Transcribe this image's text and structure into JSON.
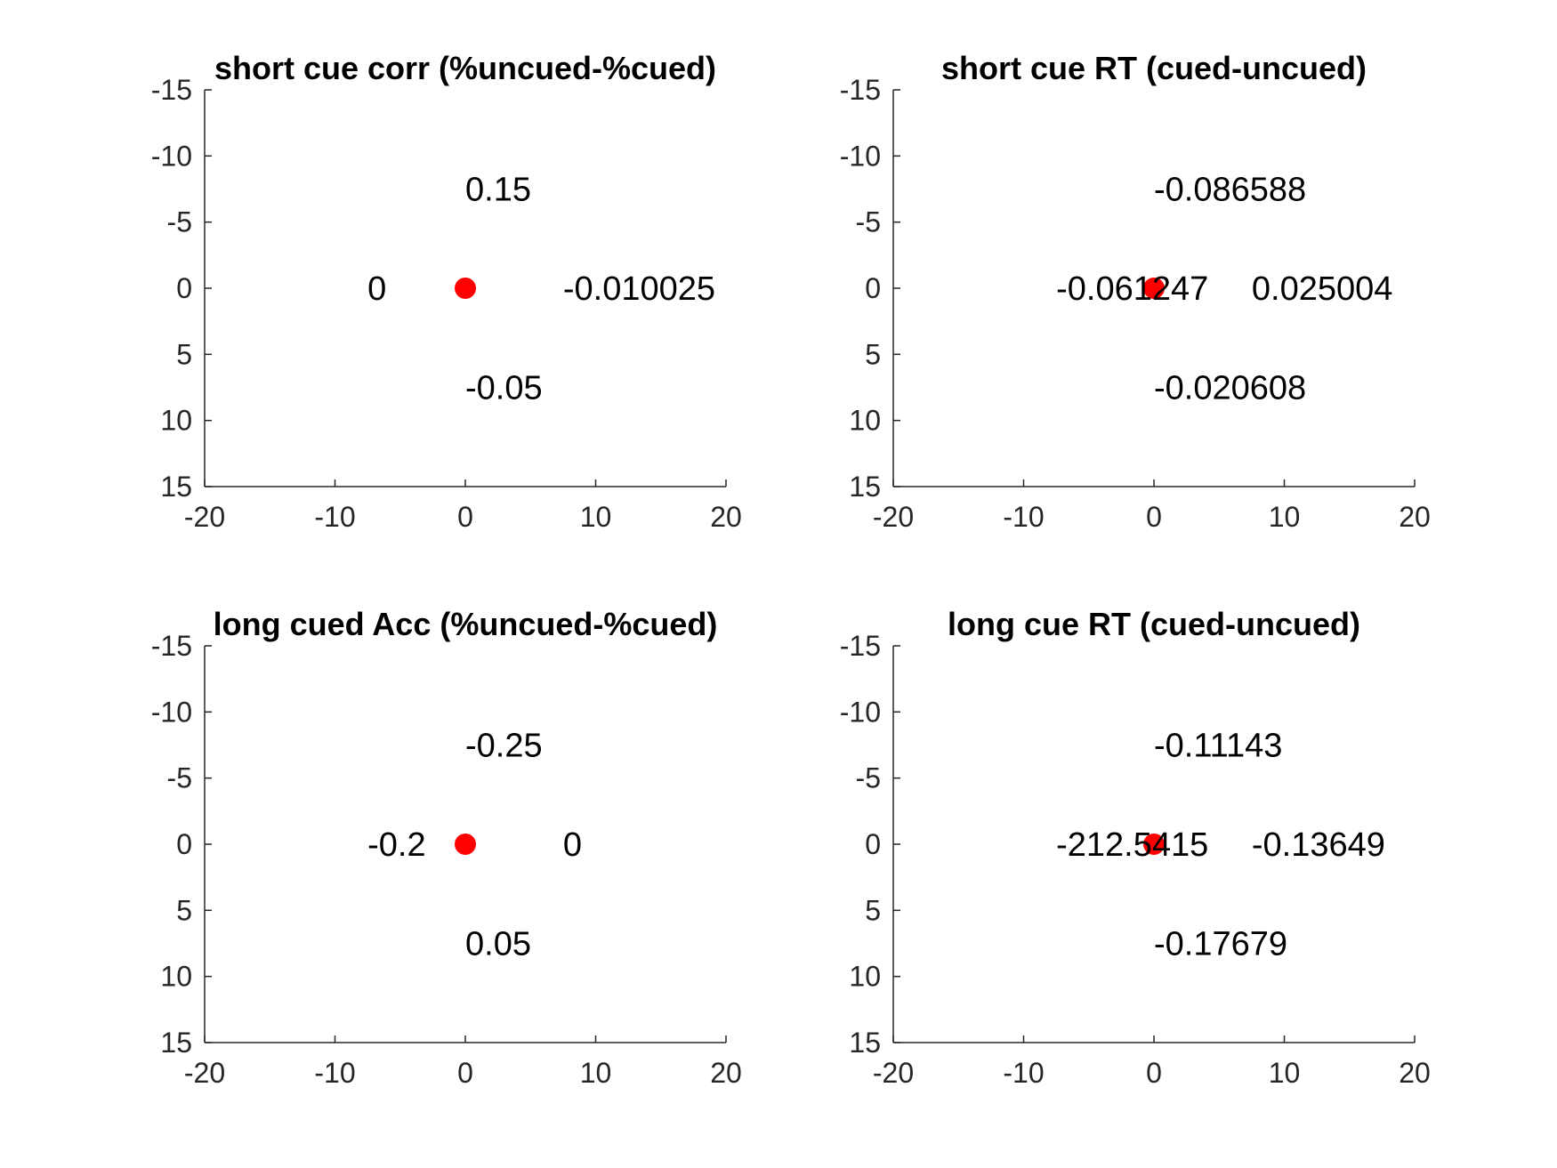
{
  "chart_data": [
    {
      "type": "scatter",
      "title": "short cue corr (%uncued-%cued)",
      "xlim": [
        -20,
        20
      ],
      "ylim": [
        -15,
        15
      ],
      "y_reversed": true,
      "x_ticks": [
        -20,
        -10,
        0,
        10,
        20
      ],
      "y_ticks": [
        -15,
        -10,
        -5,
        0,
        5,
        10,
        15
      ],
      "marker_color": "#ff0000",
      "points": [
        {
          "x": 0,
          "y": 0
        }
      ],
      "annotations": [
        {
          "text": "0.15",
          "x": 0,
          "y": -7.5
        },
        {
          "text": "0",
          "x": -7.5,
          "y": 0
        },
        {
          "text": "-0.010025",
          "x": 7.5,
          "y": 0
        },
        {
          "text": "-0.05",
          "x": 0,
          "y": 7.5
        }
      ]
    },
    {
      "type": "scatter",
      "title": "short cue RT (cued-uncued)",
      "xlim": [
        -20,
        20
      ],
      "ylim": [
        -15,
        15
      ],
      "y_reversed": true,
      "x_ticks": [
        -20,
        -10,
        0,
        10,
        20
      ],
      "y_ticks": [
        -15,
        -10,
        -5,
        0,
        5,
        10,
        15
      ],
      "marker_color": "#ff0000",
      "points": [
        {
          "x": 0,
          "y": 0
        }
      ],
      "annotations": [
        {
          "text": "-0.086588",
          "x": 0,
          "y": -7.5
        },
        {
          "text": "-0.061247",
          "x": -7.5,
          "y": 0
        },
        {
          "text": "0.025004",
          "x": 7.5,
          "y": 0
        },
        {
          "text": "-0.020608",
          "x": 0,
          "y": 7.5
        }
      ]
    },
    {
      "type": "scatter",
      "title": "long cued Acc (%uncued-%cued)",
      "xlim": [
        -20,
        20
      ],
      "ylim": [
        -15,
        15
      ],
      "y_reversed": true,
      "x_ticks": [
        -20,
        -10,
        0,
        10,
        20
      ],
      "y_ticks": [
        -15,
        -10,
        -5,
        0,
        5,
        10,
        15
      ],
      "marker_color": "#ff0000",
      "points": [
        {
          "x": 0,
          "y": 0
        }
      ],
      "annotations": [
        {
          "text": "-0.25",
          "x": 0,
          "y": -7.5
        },
        {
          "text": "-0.2",
          "x": -7.5,
          "y": 0
        },
        {
          "text": "0",
          "x": 7.5,
          "y": 0
        },
        {
          "text": "0.05",
          "x": 0,
          "y": 7.5
        }
      ]
    },
    {
      "type": "scatter",
      "title": "long cue RT (cued-uncued)",
      "xlim": [
        -20,
        20
      ],
      "ylim": [
        -15,
        15
      ],
      "y_reversed": true,
      "x_ticks": [
        -20,
        -10,
        0,
        10,
        20
      ],
      "y_ticks": [
        -15,
        -10,
        -5,
        0,
        5,
        10,
        15
      ],
      "marker_color": "#ff0000",
      "points": [
        {
          "x": 0,
          "y": 0
        }
      ],
      "annotations": [
        {
          "text": "-0.11143",
          "x": 0,
          "y": -7.5
        },
        {
          "text": "-212.5415",
          "x": -7.5,
          "y": 0
        },
        {
          "text": "-0.13649",
          "x": 7.5,
          "y": 0
        },
        {
          "text": "-0.17679",
          "x": 0,
          "y": 7.5
        }
      ]
    }
  ]
}
